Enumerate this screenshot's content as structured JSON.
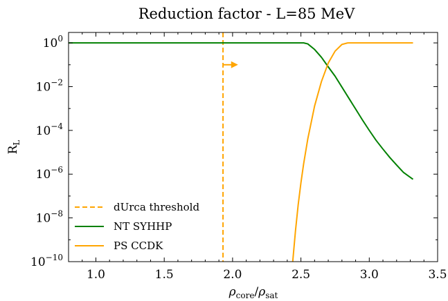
{
  "chart_data": {
    "type": "line",
    "title": "Reduction factor - L=85 MeV",
    "xlabel": "ρ_core/ρ_sat",
    "ylabel": "R_L",
    "xscale": "linear",
    "yscale": "log",
    "xlim": [
      0.8,
      3.5
    ],
    "ylim": [
      1e-10,
      3
    ],
    "xticks": [
      {
        "value": 1.0,
        "label": "1.0"
      },
      {
        "value": 1.5,
        "label": "1.5"
      },
      {
        "value": 2.0,
        "label": "2.0"
      },
      {
        "value": 2.5,
        "label": "2.5"
      },
      {
        "value": 3.0,
        "label": "3.0"
      },
      {
        "value": 3.5,
        "label": "3.5"
      }
    ],
    "yticks": [
      {
        "value": 1e-10,
        "mant": "10",
        "exp": "−10"
      },
      {
        "value": 1e-08,
        "mant": "10",
        "exp": "−8"
      },
      {
        "value": 1e-06,
        "mant": "10",
        "exp": "−6"
      },
      {
        "value": 0.0001,
        "mant": "10",
        "exp": "−4"
      },
      {
        "value": 0.01,
        "mant": "10",
        "exp": "−2"
      },
      {
        "value": 1,
        "mant": "10",
        "exp": "0"
      }
    ],
    "grid": false,
    "legend_position": "bottom-left",
    "threshold": {
      "name": "dUrca threshold",
      "x": 1.93,
      "color": "#FFA500",
      "arrow": {
        "x_from": 1.93,
        "x_to": 2.04,
        "y": 0.1
      }
    },
    "series": [
      {
        "name": "NT SYHHP",
        "color": "#008000",
        "x": [
          0.8,
          1.0,
          1.5,
          2.0,
          2.5,
          2.52,
          2.55,
          2.6,
          2.65,
          2.7,
          2.75,
          2.8,
          2.85,
          2.9,
          2.95,
          3.0,
          3.05,
          3.1,
          3.15,
          3.2,
          3.25,
          3.32
        ],
        "y": [
          1,
          1,
          1,
          1,
          1,
          1,
          0.9,
          0.5,
          0.22,
          0.08,
          0.03,
          0.0095,
          0.003,
          0.00095,
          0.0003,
          0.0001,
          3.5e-05,
          1.4e-05,
          5.8e-06,
          2.6e-06,
          1.2e-06,
          5.8e-07
        ]
      },
      {
        "name": "PS CCDK",
        "color": "#FFA500",
        "x": [
          2.44,
          2.46,
          2.48,
          2.5,
          2.52,
          2.55,
          2.6,
          2.65,
          2.7,
          2.75,
          2.8,
          2.84,
          2.85,
          3.0,
          3.32
        ],
        "y": [
          1e-10,
          2.5e-09,
          4e-08,
          4e-07,
          3e-06,
          4e-05,
          0.0013,
          0.017,
          0.12,
          0.42,
          0.85,
          0.99,
          1,
          1,
          1
        ]
      }
    ]
  }
}
